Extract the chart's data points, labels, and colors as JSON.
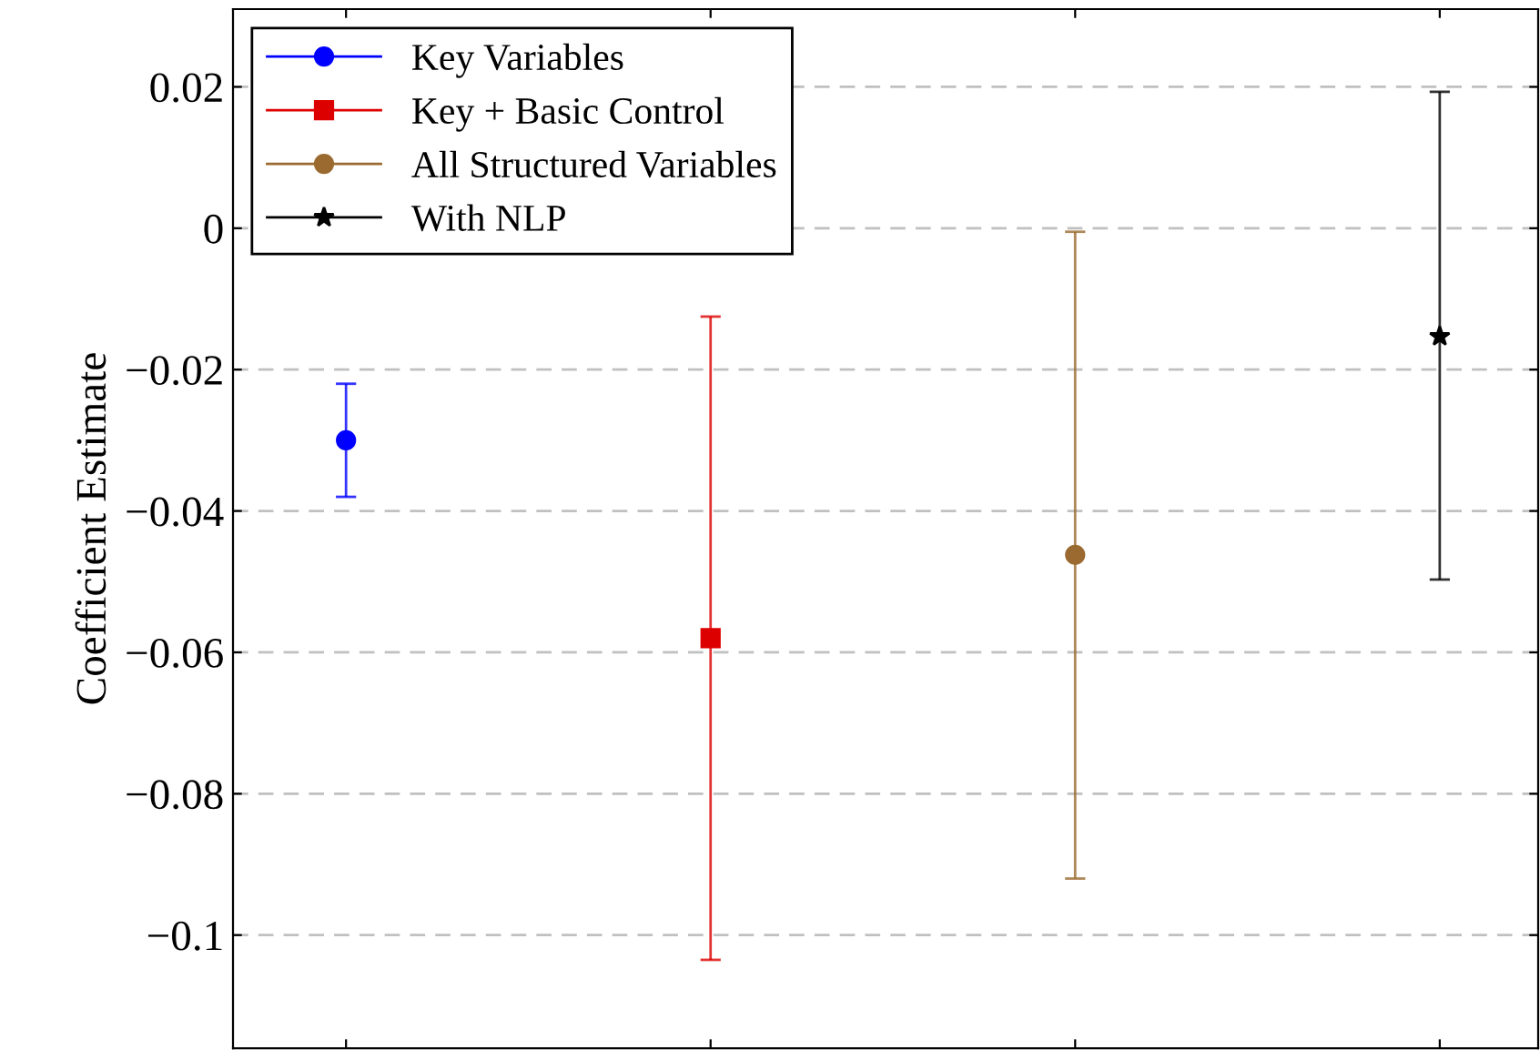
{
  "chart_data": {
    "type": "scatter",
    "ylabel": "Coefficient Estimate",
    "categories": [
      null,
      null,
      null,
      null
    ],
    "ylim": [
      -0.116,
      0.031
    ],
    "yticks": [
      {
        "value": 0.02,
        "label": "0.02"
      },
      {
        "value": 0,
        "label": "0"
      },
      {
        "value": -0.02,
        "label": "−0.02"
      },
      {
        "value": -0.04,
        "label": "−0.04"
      },
      {
        "value": -0.06,
        "label": "−0.06"
      },
      {
        "value": -0.08,
        "label": "−0.08"
      },
      {
        "value": -0.1,
        "label": "−0.1"
      }
    ],
    "grid": "y",
    "legend": "top left",
    "series": [
      {
        "name": "Key Variables",
        "color": "#0000ff",
        "marker": "circle",
        "values": [
          -0.03,
          null,
          null,
          null
        ],
        "errors": [
          [
            -0.038,
            -0.022
          ],
          null,
          null,
          null
        ]
      },
      {
        "name": "Key + Basic Control",
        "color": "#dd0000",
        "marker": "square",
        "values": [
          null,
          -0.058,
          null,
          null
        ],
        "errors": [
          null,
          [
            -0.1035,
            -0.0125
          ],
          null,
          null
        ]
      },
      {
        "name": "All Structured Variables",
        "color": "#9a6a30",
        "marker": "circle",
        "values": [
          null,
          null,
          -0.0462,
          null
        ],
        "errors": [
          null,
          null,
          [
            -0.092,
            -0.0005
          ],
          null
        ]
      },
      {
        "name": "With NLP",
        "color": "#000000",
        "marker": "star",
        "values": [
          null,
          null,
          null,
          -0.0153
        ],
        "errors": [
          null,
          null,
          null,
          [
            -0.0497,
            0.0193
          ]
        ]
      }
    ]
  }
}
